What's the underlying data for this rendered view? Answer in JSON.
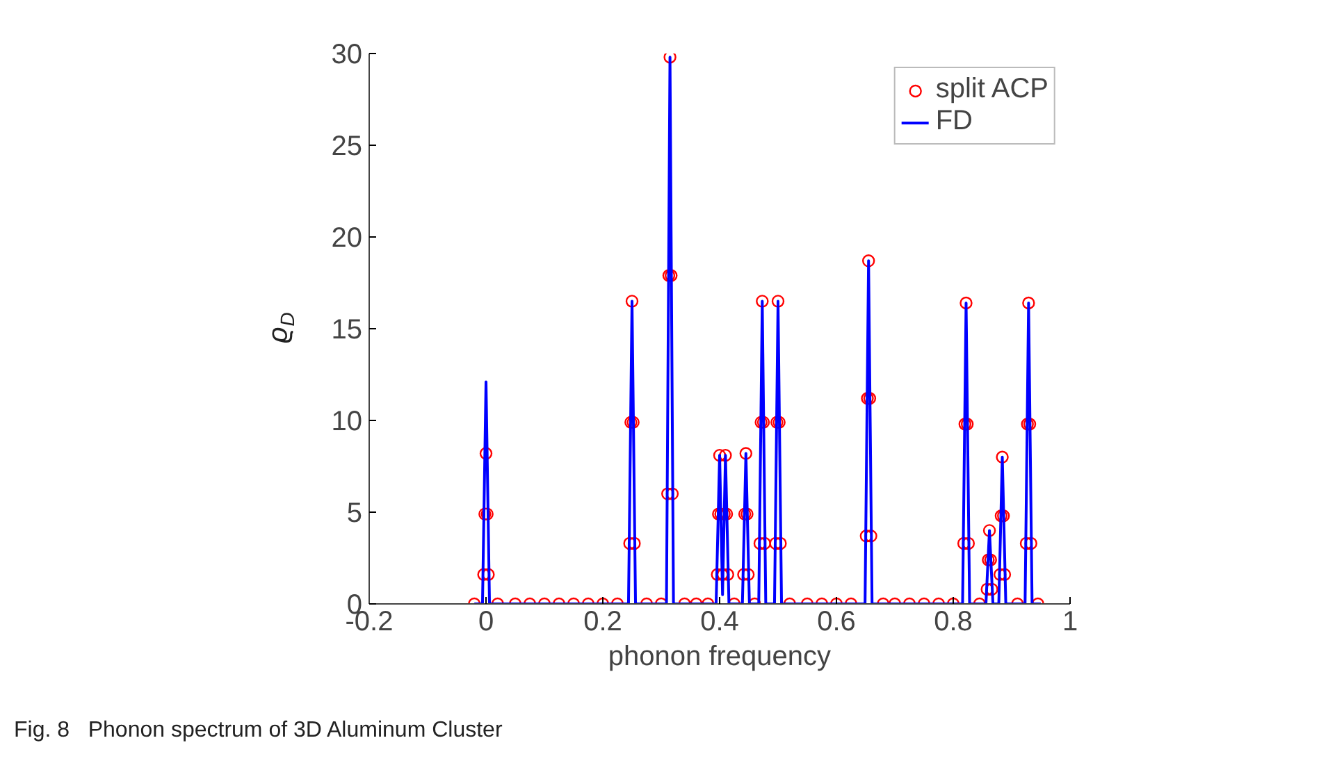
{
  "chart_data": {
    "type": "line",
    "xlabel": "phonon frequency",
    "ylabel": "ϱ$_{D}$",
    "annotations": [
      "Fig. 8   Phonon spectrum of 3D Aluminum Cluster"
    ],
    "xlim": [
      -0.2,
      1
    ],
    "ylim": [
      0,
      30
    ],
    "xticks": [
      {
        "value": -0.2,
        "label": "-0.2"
      },
      0,
      0.2,
      0.4,
      0.6,
      0.8,
      1
    ],
    "yticks": [
      0,
      5,
      10,
      15,
      20,
      25,
      30
    ],
    "grid": false,
    "legend": "top right",
    "series": [
      {
        "name": "split ACP",
        "type": "scatter",
        "marker": "circle",
        "color": "#ff0000",
        "x": [
          -0.02,
          -0.004,
          -0.002,
          0,
          0.002,
          0.004,
          0.02,
          0.05,
          0.075,
          0.1,
          0.125,
          0.15,
          0.175,
          0.2,
          0.225,
          0.246,
          0.248,
          0.25,
          0.252,
          0.254,
          0.275,
          0.3,
          0.311,
          0.313,
          0.315,
          0.317,
          0.319,
          0.34,
          0.36,
          0.38,
          0.396,
          0.398,
          0.4,
          0.402,
          0.404,
          0.406,
          0.408,
          0.41,
          0.412,
          0.414,
          0.425,
          0.441,
          0.443,
          0.445,
          0.447,
          0.449,
          0.46,
          0.469,
          0.471,
          0.473,
          0.475,
          0.477,
          0.496,
          0.498,
          0.5,
          0.502,
          0.504,
          0.52,
          0.55,
          0.575,
          0.6,
          0.625,
          0.651,
          0.653,
          0.655,
          0.657,
          0.659,
          0.68,
          0.7,
          0.725,
          0.75,
          0.775,
          0.8,
          0.818,
          0.82,
          0.822,
          0.824,
          0.826,
          0.845,
          0.858,
          0.86,
          0.862,
          0.864,
          0.866,
          0.88,
          0.882,
          0.884,
          0.886,
          0.888,
          0.91,
          0.925,
          0.927,
          0.929,
          0.931,
          0.933,
          0.945
        ],
        "values": [
          0,
          1.6,
          4.9,
          8.2,
          4.9,
          1.6,
          0,
          0,
          0,
          0,
          0,
          0,
          0,
          0,
          0,
          3.3,
          9.9,
          16.5,
          9.9,
          3.3,
          0,
          0,
          6.0,
          17.9,
          29.8,
          17.9,
          6.0,
          0,
          0,
          0,
          1.6,
          4.9,
          8.1,
          4.9,
          1.6,
          1.6,
          4.9,
          8.1,
          4.9,
          1.6,
          0,
          1.6,
          4.9,
          8.2,
          4.9,
          1.6,
          0,
          3.3,
          9.9,
          16.5,
          9.9,
          3.3,
          3.3,
          9.9,
          16.5,
          9.9,
          3.3,
          0,
          0,
          0,
          0,
          0,
          3.7,
          11.2,
          18.7,
          11.2,
          3.7,
          0,
          0,
          0,
          0,
          0,
          0,
          3.3,
          9.8,
          16.4,
          9.8,
          3.3,
          0,
          0.8,
          2.4,
          4.0,
          2.4,
          0.8,
          1.6,
          4.8,
          8.0,
          4.8,
          1.6,
          0,
          3.3,
          9.8,
          16.4,
          9.8,
          3.3,
          0
        ]
      },
      {
        "name": "FD",
        "type": "line",
        "marker": "none",
        "line_style": "solid",
        "color": "#0000ff",
        "x": [
          -0.02,
          -0.006,
          0,
          0.006,
          0.244,
          0.25,
          0.256,
          0.309,
          0.315,
          0.321,
          0.394,
          0.4,
          0.405,
          0.41,
          0.416,
          0.439,
          0.445,
          0.451,
          0.467,
          0.473,
          0.479,
          0.494,
          0.5,
          0.506,
          0.649,
          0.655,
          0.661,
          0.816,
          0.822,
          0.828,
          0.856,
          0.862,
          0.868,
          0.878,
          0.884,
          0.89,
          0.923,
          0.929,
          0.935,
          0.95
        ],
        "values": [
          0,
          0,
          12.1,
          0,
          0,
          16.5,
          0,
          0,
          29.8,
          0,
          0,
          8.1,
          0.5,
          8.1,
          0,
          0,
          8.2,
          0,
          0,
          16.5,
          0,
          0,
          16.5,
          0,
          0,
          18.7,
          0,
          0,
          16.4,
          0,
          0,
          4.0,
          0,
          0,
          8.0,
          0,
          0,
          16.4,
          0,
          0
        ]
      }
    ]
  }
}
